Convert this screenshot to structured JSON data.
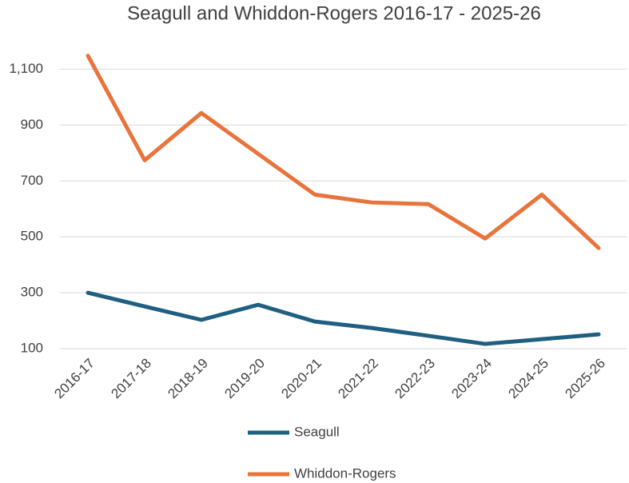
{
  "chart_data": {
    "type": "line",
    "title": "Seagull and Whiddon-Rogers 2016-17 - 2025-26",
    "categories": [
      "2016-17",
      "2017-18",
      "2018-19",
      "2019-20",
      "2020-21",
      "2021-22",
      "2022-23",
      "2023-24",
      "2024-25",
      "2025-26"
    ],
    "series": [
      {
        "name": "Seagull",
        "color": "#1f5f80",
        "values": [
          300,
          251,
          203,
          257,
          197,
          174,
          146,
          117,
          134,
          151
        ]
      },
      {
        "name": "Whiddon-Rogers",
        "color": "#e8743b",
        "values": [
          1148,
          774,
          943,
          797,
          651,
          623,
          617,
          494,
          651,
          460
        ]
      }
    ],
    "ylim": [
      100,
      1200
    ],
    "yticks": [
      100,
      300,
      500,
      700,
      900,
      {
        "value": 1100,
        "label": "1,100"
      }
    ],
    "grid": true,
    "legend": "bottom"
  }
}
